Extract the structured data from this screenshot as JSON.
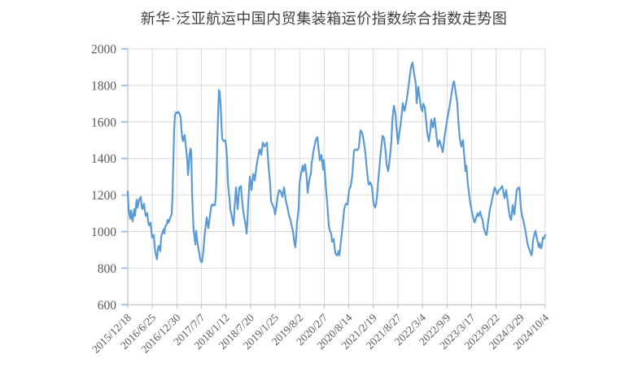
{
  "chart_data": {
    "type": "line",
    "title": "新华·泛亚航运中国内贸集装箱运价指数综合指数走势图",
    "xlabel": "",
    "ylabel": "",
    "ylim": [
      600,
      2000
    ],
    "y_ticks": [
      600,
      800,
      1000,
      1200,
      1400,
      1600,
      1800,
      2000
    ],
    "x_tick_labels": [
      "2015/12/18",
      "2016/6/25",
      "2016/12/30",
      "2017/7/7",
      "2018/1/12",
      "2018/7/20",
      "2019/1/25",
      "2019/8/2",
      "2020/2/7",
      "2020/8/14",
      "2021/2/19",
      "2021/8/27",
      "2022/3/4",
      "2022/9/9",
      "2023/3/17",
      "2023/9/22",
      "2024/3/29",
      "2024/10/4"
    ],
    "legend": "none",
    "grid": "horizontal and vertical light gray gridlines",
    "colors": {
      "line": "#5b9bd5",
      "grid": "#d9d9d9",
      "axis": "#bfbfbf",
      "labels": "#595959",
      "title": "#3f3f3f",
      "y_axis_ticks": "#9dc3e6",
      "background": "#ffffff"
    },
    "series_note": "weekly composite index sampled uniformly from 2015/12/18 to 2024/10/4",
    "values": [
      1220,
      1123,
      1093,
      1071,
      1116,
      1078,
      1056,
      1101,
      1123,
      1086,
      1138,
      1175,
      1130,
      1153,
      1175,
      1183,
      1190,
      1138,
      1123,
      1138,
      1153,
      1116,
      1086,
      1094,
      1101,
      1056,
      1034,
      1042,
      1049,
      1004,
      967,
      975,
      982,
      922,
      885,
      867,
      848,
      908,
      922,
      908,
      893,
      967,
      989,
      1000,
      1012,
      989,
      1026,
      1034,
      1041,
      1064,
      1049,
      1060,
      1075,
      1085,
      1095,
      1200,
      1380,
      1560,
      1637,
      1650,
      1652,
      1648,
      1655,
      1650,
      1640,
      1620,
      1560,
      1508,
      1495,
      1520,
      1528,
      1480,
      1440,
      1400,
      1310,
      1360,
      1420,
      1455,
      1440,
      1212,
      1100,
      1000,
      974,
      930,
      1004,
      960,
      930,
      900,
      880,
      848,
      835,
      833,
      860,
      900,
      955,
      1004,
      1040,
      1078,
      1050,
      1019,
      1050,
      1090,
      1120,
      1145,
      1148,
      1143,
      1148,
      1145,
      1180,
      1290,
      1480,
      1640,
      1775,
      1760,
      1700,
      1600,
      1510,
      1500,
      1495,
      1498,
      1500,
      1460,
      1400,
      1272,
      1220,
      1183,
      1123,
      1100,
      1080,
      1055,
      1034,
      1120,
      1180,
      1242,
      1180,
      1123,
      1180,
      1240,
      1245,
      1249,
      1200,
      1150,
      1110,
      1078,
      1056,
      1034,
      989,
      1060,
      1150,
      1230,
      1301,
      1270,
      1227,
      1270,
      1316,
      1300,
      1280,
      1315,
      1350,
      1380,
      1405,
      1430,
      1450,
      1435,
      1420,
      1455,
      1487,
      1478,
      1465,
      1472,
      1480,
      1487,
      1420,
      1361,
      1310,
      1257,
      1168,
      1155,
      1145,
      1135,
      1123,
      1093,
      1120,
      1150,
      1185,
      1210,
      1227,
      1224,
      1220,
      1205,
      1190,
      1215,
      1242,
      1210,
      1175,
      1155,
      1138,
      1115,
      1090,
      1075,
      1064,
      1040,
      1020,
      1004,
      965,
      930,
      915,
      980,
      1050,
      1090,
      1123,
      1257,
      1290,
      1320,
      1340,
      1361,
      1330,
      1350,
      1368,
      1330,
      1290,
      1212,
      1250,
      1280,
      1300,
      1316,
      1376,
      1400,
      1435,
      1460,
      1480,
      1502,
      1510,
      1517,
      1470,
      1430,
      1390,
      1405,
      1420,
      1380,
      1340,
      1391,
      1330,
      1270,
      1212,
      1160,
      1100,
      1034,
      1010,
      1000,
      989,
      945,
      950,
      960,
      920,
      885,
      875,
      870,
      878,
      893,
      870,
      910,
      950,
      990,
      1034,
      1080,
      1123,
      1140,
      1153,
      1150,
      1148,
      1190,
      1227,
      1240,
      1250,
      1280,
      1316,
      1380,
      1443,
      1448,
      1450,
      1447,
      1445,
      1452,
      1460,
      1510,
      1554,
      1548,
      1540,
      1520,
      1495,
      1460,
      1430,
      1380,
      1331,
      1290,
      1257,
      1262,
      1270,
      1258,
      1245,
      1200,
      1155,
      1140,
      1131,
      1150,
      1180,
      1235,
      1290,
      1340,
      1391,
      1440,
      1480,
      1524,
      1518,
      1510,
      1470,
      1430,
      1368,
      1350,
      1331,
      1365,
      1400,
      1450,
      1500,
      1606,
      1650,
      1688,
      1665,
      1640,
      1580,
      1530,
      1480,
      1515,
      1550,
      1580,
      1613,
      1660,
      1703,
      1680,
      1660,
      1680,
      1700,
      1730,
      1760,
      1795,
      1830,
      1865,
      1900,
      1915,
      1925,
      1890,
      1860,
      1835,
      1807,
      1703,
      1750,
      1792,
      1755,
      1720,
      1688,
      1670,
      1658,
      1700,
      1690,
      1680,
      1635,
      1590,
      1539,
      1515,
      1495,
      1530,
      1560,
      1613,
      1590,
      1570,
      1595,
      1621,
      1580,
      1540,
      1500,
      1465,
      1482,
      1500,
      1485,
      1470,
      1452,
      1435,
      1470,
      1510,
      1540,
      1570,
      1600,
      1628,
      1650,
      1675,
      1703,
      1730,
      1760,
      1790,
      1814,
      1822,
      1790,
      1760,
      1730,
      1700,
      1620,
      1560,
      1510,
      1485,
      1465,
      1490,
      1500,
      1435,
      1390,
      1331,
      1361,
      1310,
      1257,
      1220,
      1185,
      1153,
      1130,
      1105,
      1085,
      1068,
      1050,
      1060,
      1075,
      1090,
      1100,
      1085,
      1095,
      1108,
      1090,
      1075,
      1064,
      1030,
      1010,
      997,
      985,
      982,
      1020,
      1060,
      1090,
      1123,
      1140,
      1160,
      1183,
      1205,
      1225,
      1242,
      1230,
      1218,
      1205,
      1215,
      1227,
      1230,
      1235,
      1242,
      1249,
      1230,
      1205,
      1183,
      1205,
      1227,
      1195,
      1160,
      1123,
      1095,
      1075,
      1064,
      1100,
      1145,
      1120,
      1093,
      1140,
      1185,
      1227,
      1235,
      1240,
      1242,
      1200,
      1130,
      1100,
      1075,
      1064,
      1040,
      1019,
      995,
      967,
      937,
      920,
      908,
      895,
      885,
      870,
      893,
      952,
      975,
      989,
      1004,
      982,
      955,
      940,
      915,
      937,
      920,
      908,
      930,
      967,
      960,
      970,
      982
    ]
  }
}
